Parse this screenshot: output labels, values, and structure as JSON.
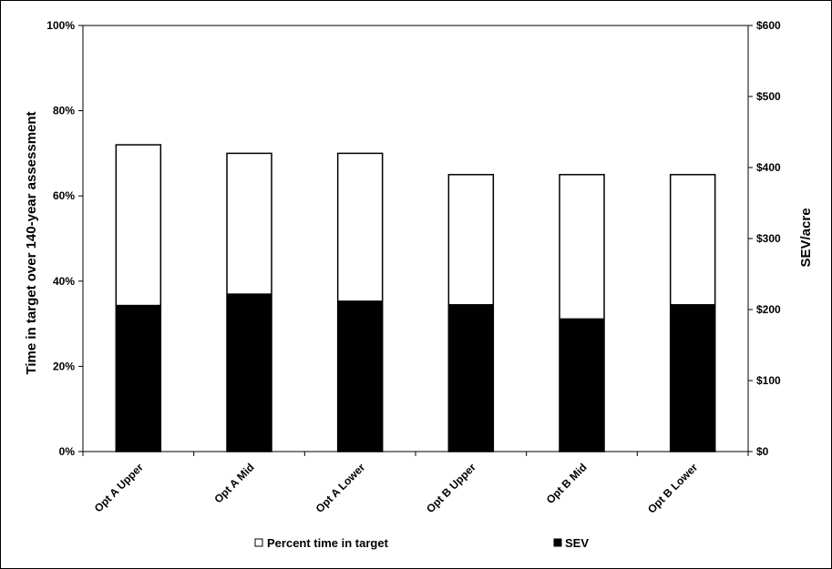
{
  "chart_data": {
    "type": "bar",
    "categories": [
      "Opt A Upper",
      "Opt A Mid",
      "Opt A Lower",
      "Opt B Upper",
      "Opt B Mid",
      "Opt B Lower"
    ],
    "series": [
      {
        "name": "Percent time in target",
        "axis": "left",
        "fill": "#ffffff",
        "values": [
          72,
          70,
          70,
          65,
          65,
          65
        ]
      },
      {
        "name": "SEV",
        "axis": "right",
        "fill": "#000000",
        "values": [
          206,
          222,
          212,
          207,
          187,
          207
        ]
      }
    ],
    "ylabel": "Time in target over 140-year assessment",
    "y2label": "SEV/acre",
    "ylim": [
      0,
      100
    ],
    "y2lim": [
      0,
      600
    ],
    "yticks": [
      "0%",
      "20%",
      "40%",
      "60%",
      "80%",
      "100%"
    ],
    "y2ticks": [
      "$0",
      "$100",
      "$200",
      "$300",
      "$400",
      "$500",
      "$600"
    ],
    "grid": false,
    "legend_position": "bottom"
  }
}
